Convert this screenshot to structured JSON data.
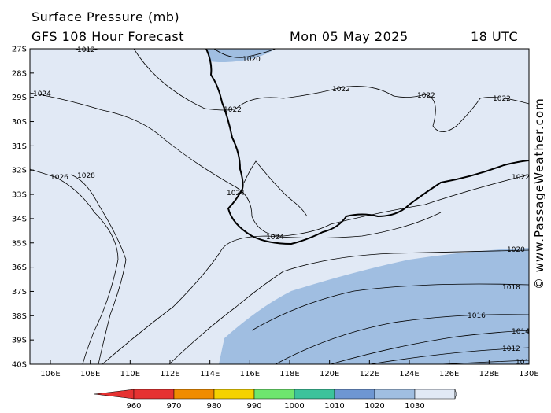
{
  "header": {
    "title": "Surface Pressure (mb)",
    "subtitle": "GFS 108 Hour Forecast",
    "date": "Mon 05 May 2025",
    "time": "18 UTC"
  },
  "credit": "© www.PassageWeather.com",
  "map": {
    "lat_ticks": [
      "27S",
      "28S",
      "29S",
      "30S",
      "31S",
      "32S",
      "33S",
      "34S",
      "35S",
      "36S",
      "37S",
      "38S",
      "39S",
      "40S"
    ],
    "lon_ticks": [
      "106E",
      "108E",
      "110E",
      "112E",
      "114E",
      "116E",
      "118E",
      "120E",
      "122E",
      "124E",
      "126E",
      "128E",
      "130E"
    ],
    "isobar_labels": [
      "1012",
      "1020",
      "1022",
      "1022",
      "1022",
      "1022",
      "1024",
      "1026",
      "1028",
      "1024",
      "1024",
      "1022",
      "1020",
      "1018",
      "1016",
      "1014",
      "1012",
      "101"
    ]
  },
  "legend": {
    "values": [
      "960",
      "970",
      "980",
      "990",
      "1000",
      "1010",
      "1020",
      "1030"
    ],
    "colors": [
      "#e63232",
      "#f08c00",
      "#f5d200",
      "#6ee66e",
      "#3cc39b",
      "#6e96d2",
      "#a0bee1",
      "#e1e9f5"
    ]
  }
}
